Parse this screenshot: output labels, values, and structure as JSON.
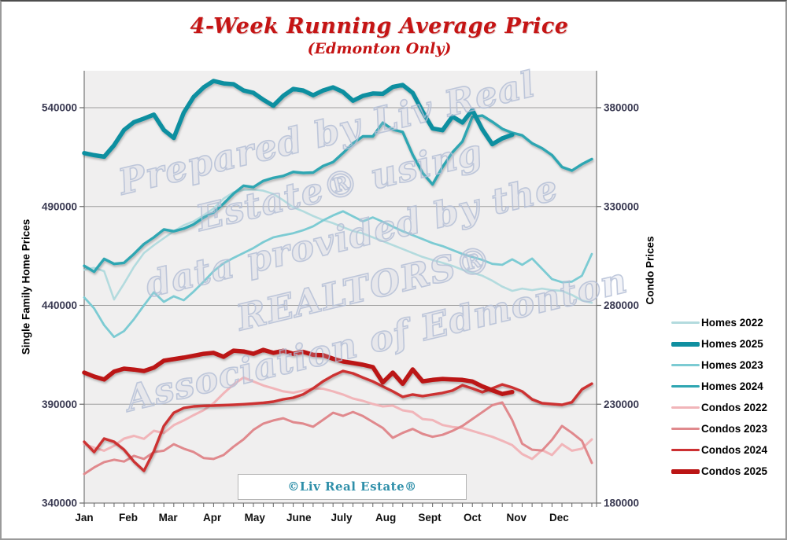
{
  "header": {
    "title": "4-Week Running Average Price",
    "subtitle": "(Edmonton Only)",
    "title_color": "#c51414"
  },
  "watermark": {
    "lines": [
      "Prepared by Liv Real",
      "Estate® using",
      "data provided by the",
      "REALTORS®",
      "Association of Edmonton"
    ]
  },
  "footer_box": {
    "text": "©Liv Real Estate®",
    "color": "#2e8fa9"
  },
  "legend": {
    "order": [
      "Homes 2022",
      "Homes 2025",
      "Homes 2023",
      "Homes 2024",
      "Condos 2022",
      "Condos 2023",
      "Condos 2024",
      "Condos 2025"
    ]
  },
  "chart_data": {
    "type": "line",
    "title": "4-Week Running Average Price",
    "subtitle": "(Edmonton Only)",
    "x_unit": "week of year (weekly ticks)",
    "grid": "horizontal",
    "legend_position": "right",
    "months": [
      "Jan",
      "Feb",
      "Mar",
      "Apr",
      "May",
      "June",
      "July",
      "Aug",
      "Sept",
      "Oct",
      "Nov",
      "Dec"
    ],
    "left_axis": {
      "label": "Single Family Home Prices",
      "ticks": [
        540000,
        490000,
        440000,
        390000,
        340000
      ],
      "tick_color": "#3a3a52"
    },
    "right_axis": {
      "label": "Condo Prices",
      "ticks": [
        380000,
        330000,
        280000,
        230000,
        180000
      ],
      "tick_color": "#3a3a52"
    },
    "series": [
      {
        "name": "Homes 2022",
        "axis": "left",
        "color": "#b3dbde",
        "width": 2.6,
        "values": [
          458000,
          459000,
          457300,
          443000,
          451000,
          459500,
          466500,
          470400,
          474000,
          477500,
          480500,
          482500,
          485600,
          489000,
          494000,
          497200,
          498400,
          498600,
          498000,
          496400,
          493200,
          489600,
          487600,
          485200,
          483200,
          481600,
          479600,
          477600,
          476400,
          474400,
          472500,
          470500,
          468500,
          466500,
          464500,
          463000,
          461500,
          460000,
          458000,
          456500,
          455000,
          452500,
          449500,
          447300,
          448500,
          447700,
          448500,
          447700,
          447300,
          445300,
          442500,
          441300
        ]
      },
      {
        "name": "Homes 2023",
        "axis": "left",
        "color": "#7ccbd3",
        "width": 2.8,
        "values": [
          444000,
          438500,
          430000,
          424000,
          427000,
          433000,
          440000,
          446600,
          441800,
          444600,
          442600,
          447000,
          452000,
          457300,
          461300,
          464000,
          466500,
          469000,
          472000,
          474400,
          475500,
          476500,
          478000,
          480000,
          483000,
          485500,
          487600,
          485000,
          482500,
          484500,
          482300,
          479800,
          477500,
          475500,
          473500,
          471500,
          470000,
          468000,
          466000,
          464500,
          463000,
          461000,
          460500,
          463300,
          460500,
          463700,
          458500,
          453300,
          451700,
          452000,
          455000,
          466000
        ]
      },
      {
        "name": "Homes 2024",
        "axis": "left",
        "color": "#2fa6b2",
        "width": 3.4,
        "values": [
          460000,
          457000,
          463500,
          461000,
          461500,
          466000,
          471000,
          474400,
          478400,
          477500,
          478800,
          481000,
          484400,
          487000,
          491500,
          496500,
          500500,
          499800,
          503000,
          504500,
          505500,
          507500,
          507000,
          507200,
          510500,
          512500,
          517000,
          522000,
          525500,
          525500,
          532400,
          528900,
          527700,
          516200,
          507000,
          501200,
          510000,
          517400,
          522900,
          535300,
          536000,
          532900,
          529300,
          527300,
          526000,
          522000,
          519500,
          516000,
          510000,
          508200,
          511400,
          514000
        ]
      },
      {
        "name": "Homes 2025",
        "axis": "left",
        "color": "#0f8fa0",
        "width": 5.5,
        "values": [
          517000,
          516000,
          515200,
          521000,
          528700,
          532700,
          534500,
          536500,
          528700,
          524700,
          537500,
          545500,
          550300,
          553500,
          552300,
          551900,
          548700,
          547500,
          544000,
          541000,
          546000,
          549500,
          548700,
          546300,
          548700,
          550300,
          548000,
          543500,
          546000,
          547200,
          547000,
          550500,
          551500,
          547500,
          538000,
          529500,
          528600,
          535500,
          532500,
          538800,
          529000,
          521500,
          524500,
          526300
        ]
      },
      {
        "name": "Condos 2022",
        "axis": "right",
        "color": "#f1b5b9",
        "width": 3.0,
        "values": [
          209800,
          208000,
          206500,
          209000,
          212600,
          214000,
          212500,
          216600,
          215400,
          219400,
          221800,
          224500,
          227000,
          230500,
          235500,
          240000,
          243500,
          241500,
          239500,
          238000,
          236500,
          235800,
          236900,
          238000,
          237800,
          236500,
          234900,
          232900,
          231700,
          230100,
          228900,
          229300,
          226900,
          226100,
          222500,
          222000,
          219500,
          218500,
          218000,
          216500,
          215000,
          213500,
          211500,
          209300,
          204800,
          202300,
          206800,
          204300,
          209800,
          206500,
          207500,
          212200
        ]
      },
      {
        "name": "Condos 2023",
        "axis": "right",
        "color": "#e0898d",
        "width": 3.0,
        "values": [
          194700,
          198000,
          200700,
          201900,
          201000,
          203900,
          202300,
          205800,
          206500,
          209800,
          207500,
          205800,
          202800,
          202300,
          204300,
          208500,
          212200,
          217000,
          220200,
          221800,
          222900,
          220900,
          220200,
          218600,
          222100,
          225700,
          224100,
          226100,
          224000,
          221000,
          218000,
          213000,
          215500,
          217500,
          215000,
          213500,
          214500,
          216500,
          219000,
          222500,
          226000,
          229500,
          230900,
          222000,
          210000,
          207000,
          206600,
          212000,
          219000,
          215500,
          211500,
          200300
        ]
      },
      {
        "name": "Condos 2024",
        "axis": "right",
        "color": "#cc3032",
        "width": 3.4,
        "values": [
          211000,
          205800,
          212600,
          211000,
          207000,
          201000,
          196300,
          206200,
          219000,
          225700,
          228100,
          228900,
          229200,
          229300,
          229500,
          229700,
          230000,
          230300,
          230700,
          231300,
          232500,
          233300,
          235000,
          238000,
          241600,
          244500,
          246800,
          245600,
          243500,
          241500,
          239000,
          236500,
          233700,
          234900,
          234100,
          234900,
          235700,
          236900,
          239600,
          238000,
          236100,
          238000,
          240000,
          238500,
          236500,
          232500,
          230500,
          230100,
          229700,
          231000,
          237500,
          240400
        ]
      },
      {
        "name": "Condos 2025",
        "axis": "right",
        "color": "#bb1515",
        "width": 5.5,
        "values": [
          246000,
          244000,
          242500,
          246500,
          248000,
          247500,
          246800,
          248500,
          252000,
          252800,
          253600,
          254500,
          255500,
          256000,
          254000,
          257100,
          256700,
          255500,
          257500,
          256000,
          257000,
          255500,
          256500,
          255000,
          254800,
          253000,
          251600,
          250800,
          250000,
          248800,
          241000,
          246000,
          240300,
          247600,
          241600,
          242300,
          242800,
          242500,
          242300,
          241500,
          239000,
          237000,
          235200,
          236200
        ]
      }
    ]
  }
}
